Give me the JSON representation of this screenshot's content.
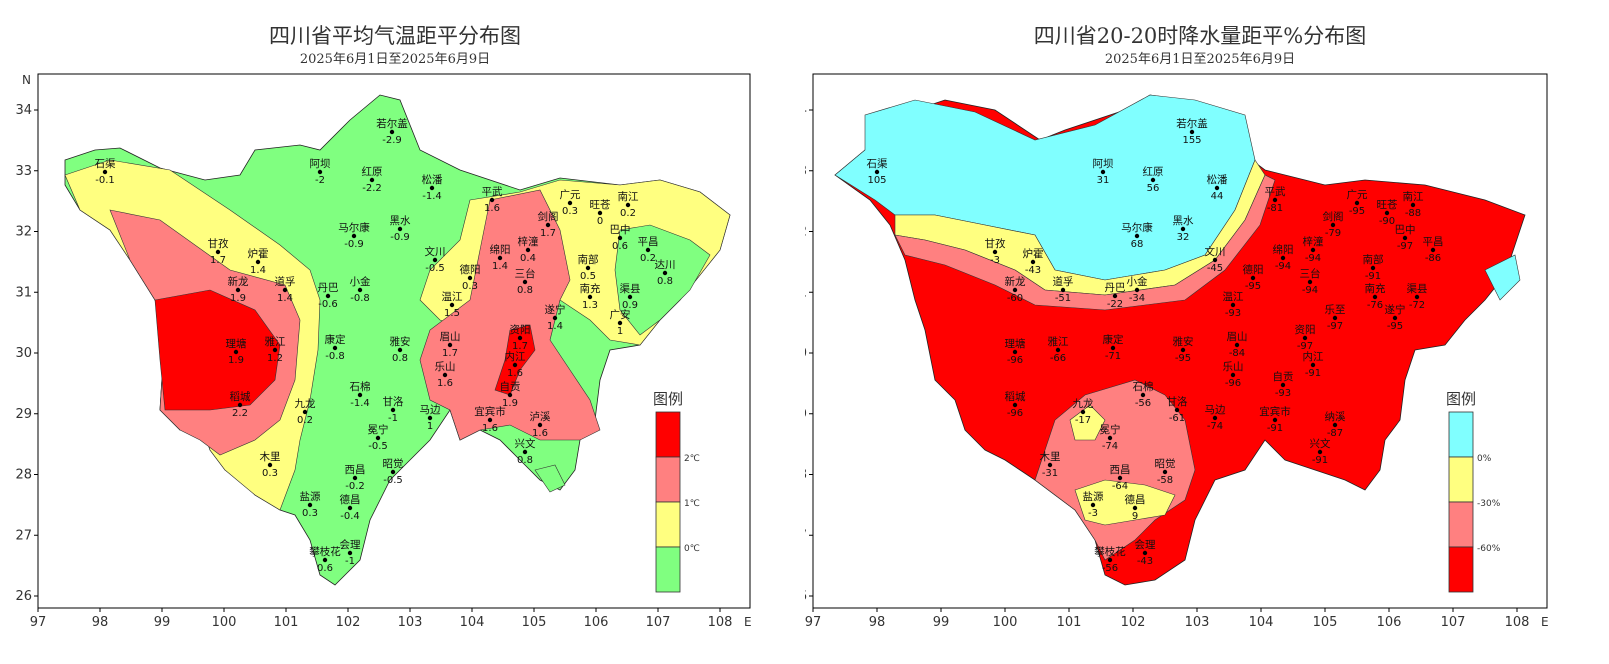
{
  "left_map": {
    "title": "四川省平均气温距平分布图",
    "subtitle": "2025年6月1日至2025年6月9日",
    "lat_label": "N",
    "lon_label": "E",
    "lon_ticks": [
      "97",
      "98",
      "99",
      "100",
      "101",
      "102",
      "103",
      "104",
      "105",
      "106",
      "107",
      "108"
    ],
    "lat_ticks": [
      "26",
      "27",
      "28",
      "29",
      "30",
      "31",
      "32",
      "33",
      "34"
    ],
    "legend": {
      "title": "图例",
      "labels": [
        "2℃",
        "1℃",
        "0℃"
      ],
      "colors": [
        "#ff0000",
        "#ff8080",
        "#ffff80",
        "#80ff80"
      ]
    },
    "stations": [
      {
        "name": "石渠",
        "value": "-0.1"
      },
      {
        "name": "若尔盖",
        "value": "-2.9"
      },
      {
        "name": "阿坝",
        "value": "-2"
      },
      {
        "name": "红原",
        "value": "-2.2"
      },
      {
        "name": "松潘",
        "value": "-1.4"
      },
      {
        "name": "马尔康",
        "value": "-0.9"
      },
      {
        "name": "黑水",
        "value": "-0.9"
      },
      {
        "name": "甘孜",
        "value": "1.7"
      },
      {
        "name": "炉霍",
        "value": "1.4"
      },
      {
        "name": "新龙",
        "value": "1.9"
      },
      {
        "name": "道孚",
        "value": "1.4"
      },
      {
        "name": "丹巴",
        "value": "-0.6"
      },
      {
        "name": "小金",
        "value": "-0.8"
      },
      {
        "name": "文川",
        "value": "-0.5"
      },
      {
        "name": "理塘",
        "value": "1.9"
      },
      {
        "name": "雅江",
        "value": "1.2"
      },
      {
        "name": "康定",
        "value": "-0.8"
      },
      {
        "name": "稻城",
        "value": "2.2"
      },
      {
        "name": "九龙",
        "value": "0.2"
      },
      {
        "name": "石棉",
        "value": "-1.4"
      },
      {
        "name": "甘洛",
        "value": "-1"
      },
      {
        "name": "冕宁",
        "value": "-0.5"
      },
      {
        "name": "木里",
        "value": "0.3"
      },
      {
        "name": "西昌",
        "value": "-0.2"
      },
      {
        "name": "昭觉",
        "value": "-0.5"
      },
      {
        "name": "盐源",
        "value": "0.3"
      },
      {
        "name": "德昌",
        "value": "-0.4"
      },
      {
        "name": "攀枝花",
        "value": "0.6"
      },
      {
        "name": "会理",
        "value": "-1"
      },
      {
        "name": "平武",
        "value": "1.6"
      },
      {
        "name": "广元",
        "value": "0.3"
      },
      {
        "name": "旺苍",
        "value": "0"
      },
      {
        "name": "南江",
        "value": "0.2"
      },
      {
        "name": "剑阁",
        "value": "1.7"
      },
      {
        "name": "梓潼",
        "value": "0.4"
      },
      {
        "name": "巴中",
        "value": "0.6"
      },
      {
        "name": "平昌",
        "value": "0.2"
      },
      {
        "name": "达川",
        "value": "0.8"
      },
      {
        "name": "绵阳",
        "value": "1.4"
      },
      {
        "name": "德阳",
        "value": "0.3"
      },
      {
        "name": "三台",
        "value": "0.8"
      },
      {
        "name": "南部",
        "value": "0.5"
      },
      {
        "name": "渠县",
        "value": "0.9"
      },
      {
        "name": "南充",
        "value": "1.3"
      },
      {
        "name": "温江",
        "value": "1.5"
      },
      {
        "name": "遂宁",
        "value": "1.4"
      },
      {
        "name": "广安",
        "value": "1"
      },
      {
        "name": "资阳",
        "value": "1.7"
      },
      {
        "name": "雅安",
        "value": "0.8"
      },
      {
        "name": "眉山",
        "value": "1.7"
      },
      {
        "name": "乐山",
        "value": "1.6"
      },
      {
        "name": "内江",
        "value": "1.6"
      },
      {
        "name": "自贡",
        "value": "1.9"
      },
      {
        "name": "马边",
        "value": "1"
      },
      {
        "name": "宜宾市",
        "value": "1.6"
      },
      {
        "name": "泸溪",
        "value": "1.6"
      },
      {
        "name": "兴文",
        "value": "0.8"
      }
    ]
  },
  "right_map": {
    "title": "四川省20-20时降水量距平%分布图",
    "subtitle": "2025年6月1日至2025年6月9日",
    "lat_label": "N",
    "lon_label": "E",
    "lon_ticks": [
      "97",
      "98",
      "99",
      "100",
      "101",
      "102",
      "103",
      "104",
      "105",
      "106",
      "107",
      "108"
    ],
    "lat_ticks": [
      "26",
      "27",
      "28",
      "29",
      "30",
      "31",
      "32",
      "33",
      "34"
    ],
    "legend": {
      "title": "图例",
      "labels": [
        "0%",
        "-30%",
        "-60%"
      ],
      "colors": [
        "#80ffff",
        "#ffff80",
        "#ff8080",
        "#ff0000"
      ]
    },
    "stations": [
      {
        "name": "石渠",
        "value": "105"
      },
      {
        "name": "若尔盖",
        "value": "155"
      },
      {
        "name": "阿坝",
        "value": "31"
      },
      {
        "name": "红原",
        "value": "56"
      },
      {
        "name": "松潘",
        "value": "44"
      },
      {
        "name": "马尔康",
        "value": "68"
      },
      {
        "name": "黑水",
        "value": "32"
      },
      {
        "name": "甘孜",
        "value": "-3"
      },
      {
        "name": "炉霍",
        "value": "-43"
      },
      {
        "name": "新龙",
        "value": "-60"
      },
      {
        "name": "道孚",
        "value": "-51"
      },
      {
        "name": "丹巴",
        "value": "-22"
      },
      {
        "name": "小金",
        "value": "-34"
      },
      {
        "name": "文川",
        "value": "-45"
      },
      {
        "name": "平武",
        "value": "-81"
      },
      {
        "name": "广元",
        "value": "-95"
      },
      {
        "name": "旺苍",
        "value": "-90"
      },
      {
        "name": "南江",
        "value": "-88"
      },
      {
        "name": "剑阁",
        "value": "-79"
      },
      {
        "name": "梓潼",
        "value": "-94"
      },
      {
        "name": "巴中",
        "value": "-97"
      },
      {
        "name": "绵阳",
        "value": "-94"
      },
      {
        "name": "南部",
        "value": "-91"
      },
      {
        "name": "平昌",
        "value": "-86"
      },
      {
        "name": "德阳",
        "value": "-95"
      },
      {
        "name": "三台",
        "value": "-94"
      },
      {
        "name": "渠县",
        "value": "-72"
      },
      {
        "name": "南充",
        "value": "-76"
      },
      {
        "name": "理塘",
        "value": "-96"
      },
      {
        "name": "雅江",
        "value": "-66"
      },
      {
        "name": "康定",
        "value": "-71"
      },
      {
        "name": "雅安",
        "value": "-95"
      },
      {
        "name": "眉山",
        "value": "-84"
      },
      {
        "name": "温江",
        "value": "-93"
      },
      {
        "name": "乐至",
        "value": "-97"
      },
      {
        "name": "遂宁",
        "value": "-95"
      },
      {
        "name": "资阳",
        "value": "-97"
      },
      {
        "name": "内江",
        "value": "-91"
      },
      {
        "name": "乐山",
        "value": "-96"
      },
      {
        "name": "自贡",
        "value": "-93"
      },
      {
        "name": "稻城",
        "value": "-96"
      },
      {
        "name": "九龙",
        "value": "-17"
      },
      {
        "name": "石棉",
        "value": "-56"
      },
      {
        "name": "甘洛",
        "value": "-61"
      },
      {
        "name": "马边",
        "value": "-74"
      },
      {
        "name": "宜宾市",
        "value": "-91"
      },
      {
        "name": "纳溪",
        "value": "-87"
      },
      {
        "name": "兴文",
        "value": "-91"
      },
      {
        "name": "冕宁",
        "value": "-74"
      },
      {
        "name": "木里",
        "value": "-31"
      },
      {
        "name": "西昌",
        "value": "-64"
      },
      {
        "name": "昭觉",
        "value": "-58"
      },
      {
        "name": "盐源",
        "value": "-3"
      },
      {
        "name": "德昌",
        "value": "9"
      },
      {
        "name": "攀枝花",
        "value": "-56"
      },
      {
        "name": "会理",
        "value": "-43"
      }
    ]
  }
}
